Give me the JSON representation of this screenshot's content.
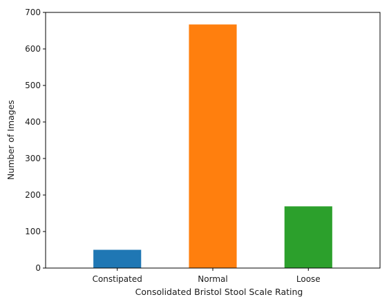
{
  "chart_data": {
    "type": "bar",
    "categories": [
      "Constipated",
      "Normal",
      "Loose"
    ],
    "values": [
      50,
      667,
      169
    ],
    "colors": [
      "#1f77b4",
      "#ff7f0e",
      "#2ca02c"
    ],
    "xlabel": "Consolidated Bristol Stool Scale Rating",
    "ylabel": "Number of Images",
    "ylim": [
      0,
      700
    ],
    "yticks": [
      0,
      100,
      200,
      300,
      400,
      500,
      600,
      700
    ],
    "grid": false
  }
}
